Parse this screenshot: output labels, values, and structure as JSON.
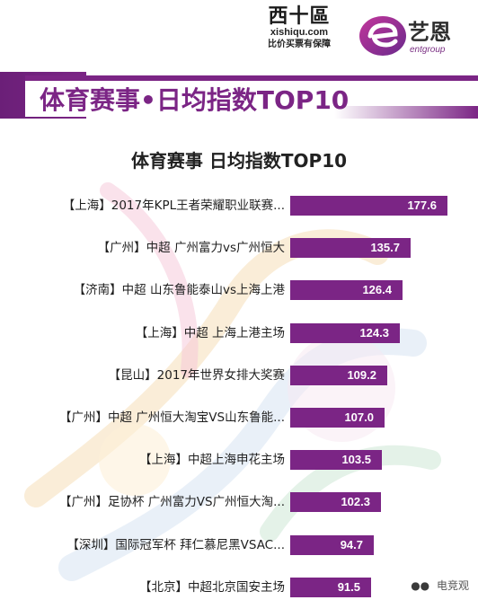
{
  "logos": {
    "xsq_mark": "西十區",
    "xsq_domain": "xishiqu.com",
    "xsq_slogan": "比价买票有保障",
    "ent_cn": "艺恩",
    "ent_en": "entgroup"
  },
  "banner": {
    "title": "体育赛事•日均指数TOP10"
  },
  "colors": {
    "bar": "#7b2585",
    "banner": "#7b2585"
  },
  "chart_data": {
    "type": "bar",
    "orientation": "horizontal",
    "title": "体育赛事  日均指数TOP10",
    "xlabel": "",
    "ylabel": "",
    "grid": false,
    "categories": [
      "【上海】2017年KPL王者荣耀职业联赛...",
      "【广州】中超 广州富力vs广州恒大",
      "【济南】中超 山东鲁能泰山vs上海上港",
      "【上海】中超 上海上港主场",
      "【昆山】2017年世界女排大奖赛",
      "【广州】中超 广州恒大淘宝VS山东鲁能...",
      "【上海】中超上海申花主场",
      "【广州】足协杯 广州富力VS广州恒大淘...",
      "【深圳】国际冠军杯 拜仁慕尼黑VSAC...",
      "【北京】中超北京国安主场"
    ],
    "values": [
      177.6,
      135.7,
      126.4,
      124.3,
      109.2,
      107.0,
      103.5,
      102.3,
      94.7,
      91.5
    ],
    "value_labels": [
      "177.6",
      "135.7",
      "126.4",
      "124.3",
      "109.2",
      "107.0",
      "103.5",
      "102.3",
      "94.7",
      "91.5"
    ]
  },
  "watermark": {
    "text": "电竞观"
  }
}
